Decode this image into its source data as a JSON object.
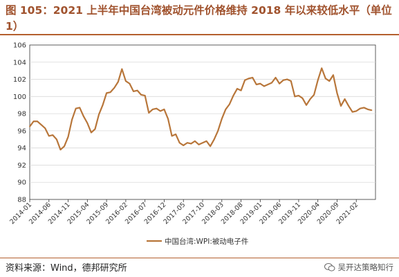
{
  "title": "图 105：2021 上半年中国台湾被动元件价格维持 2018 年以来较低水平（单位 1）",
  "source": "资料来源：Wind，德邦研究所",
  "watermark": "吴开达策略知行",
  "colors": {
    "line": "#b8763a",
    "title": "#a0522d",
    "rule": "#b45f2e"
  },
  "chart_data": {
    "type": "line",
    "ylim": [
      88,
      106
    ],
    "yticks": [
      88,
      90,
      92,
      94,
      96,
      98,
      100,
      102,
      104,
      106
    ],
    "xticks": [
      "2014-01",
      "2014-06",
      "2014-11",
      "2015-04",
      "2015-09",
      "2016-02",
      "2016-07",
      "2016-12",
      "2017-05",
      "2017-10",
      "2018-03",
      "2018-08",
      "2019-01",
      "2019-06",
      "2019-11",
      "2020-04",
      "2020-09",
      "2021-02"
    ],
    "grid": true,
    "legend_position": "bottom",
    "series": [
      {
        "name": "中国台湾:WPI:被动电子件",
        "x": [
          "2014-01",
          "2014-02",
          "2014-03",
          "2014-04",
          "2014-05",
          "2014-06",
          "2014-07",
          "2014-08",
          "2014-09",
          "2014-10",
          "2014-11",
          "2014-12",
          "2015-01",
          "2015-02",
          "2015-03",
          "2015-04",
          "2015-05",
          "2015-06",
          "2015-07",
          "2015-08",
          "2015-09",
          "2015-10",
          "2015-11",
          "2015-12",
          "2016-01",
          "2016-02",
          "2016-03",
          "2016-04",
          "2016-05",
          "2016-06",
          "2016-07",
          "2016-08",
          "2016-09",
          "2016-10",
          "2016-11",
          "2016-12",
          "2017-01",
          "2017-02",
          "2017-03",
          "2017-04",
          "2017-05",
          "2017-06",
          "2017-07",
          "2017-08",
          "2017-09",
          "2017-10",
          "2017-11",
          "2017-12",
          "2018-01",
          "2018-02",
          "2018-03",
          "2018-04",
          "2018-05",
          "2018-06",
          "2018-07",
          "2018-08",
          "2018-09",
          "2018-10",
          "2018-11",
          "2018-12",
          "2019-01",
          "2019-02",
          "2019-03",
          "2019-04",
          "2019-05",
          "2019-06",
          "2019-07",
          "2019-08",
          "2019-09",
          "2019-10",
          "2019-11",
          "2019-12",
          "2020-01",
          "2020-02",
          "2020-03",
          "2020-04",
          "2020-05",
          "2020-06",
          "2020-07",
          "2020-08",
          "2020-09",
          "2020-10",
          "2020-11",
          "2020-12",
          "2021-01",
          "2021-02",
          "2021-03",
          "2021-04",
          "2021-05",
          "2021-06"
        ],
        "values": [
          96.5,
          97.1,
          97.1,
          96.7,
          96.3,
          95.4,
          95.5,
          95.0,
          93.8,
          94.2,
          95.3,
          97.3,
          98.6,
          98.7,
          97.7,
          96.9,
          95.8,
          96.2,
          97.9,
          99.0,
          100.4,
          100.5,
          101.0,
          101.7,
          103.2,
          101.8,
          101.5,
          100.6,
          100.7,
          100.2,
          100.1,
          98.1,
          98.5,
          98.6,
          98.3,
          98.5,
          97.4,
          95.4,
          95.6,
          94.6,
          94.3,
          94.6,
          94.5,
          94.8,
          94.4,
          94.6,
          94.8,
          94.2,
          95.0,
          96.0,
          97.4,
          98.5,
          99.1,
          100.1,
          100.9,
          100.7,
          101.9,
          102.1,
          102.2,
          101.4,
          101.5,
          101.2,
          101.4,
          101.6,
          102.2,
          101.5,
          101.9,
          102.0,
          101.8,
          100.0,
          100.1,
          99.8,
          99.0,
          99.7,
          100.2,
          101.9,
          103.3,
          102.1,
          101.8,
          102.5,
          100.4,
          98.9,
          99.7,
          98.9,
          98.2,
          98.3,
          98.6,
          98.7,
          98.5,
          98.4
        ]
      }
    ]
  }
}
